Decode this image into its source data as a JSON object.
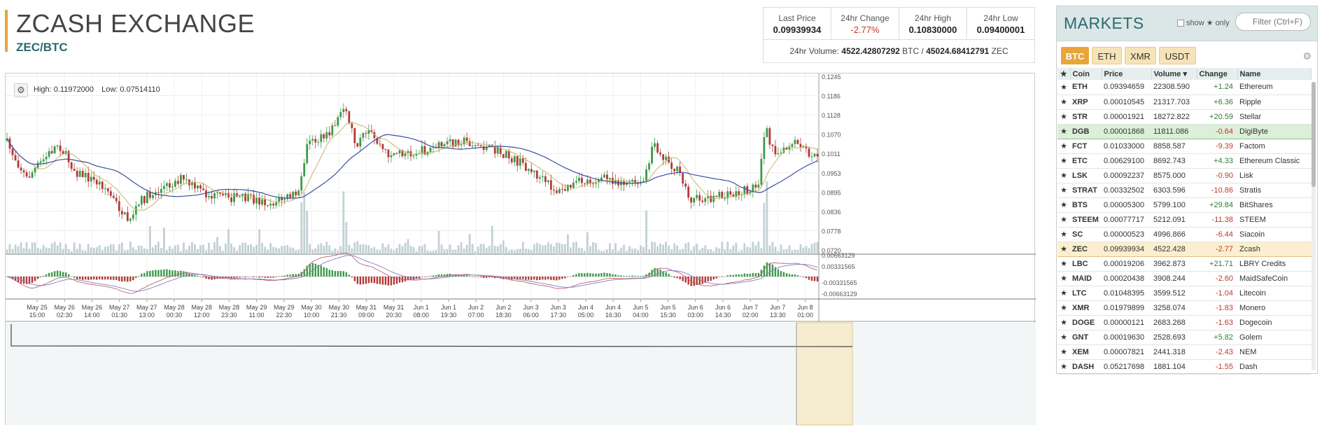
{
  "header": {
    "title": "ZCASH EXCHANGE",
    "pair": "ZEC/BTC"
  },
  "stats": {
    "last_price_label": "Last Price",
    "last_price": "0.09939934",
    "change_label": "24hr Change",
    "change": "-2.77%",
    "high_label": "24hr High",
    "high": "0.10830000",
    "low_label": "24hr Low",
    "low": "0.09400001",
    "volume_label": "24hr Volume:",
    "volume_btc": "4522.42807292",
    "volume_btc_unit": "BTC",
    "volume_sep": "/",
    "volume_zec": "45024.68412791",
    "volume_zec_unit": "ZEC"
  },
  "chart": {
    "high_label": "High: 0.11972000",
    "low_label": "Low: 0.07514110",
    "price_ticks": [
      "0.1245",
      "0.1186",
      "0.1128",
      "0.1070",
      "0.1011",
      "0.0953",
      "0.0895",
      "0.0836",
      "0.0778",
      "0.0720"
    ],
    "macd_ticks": [
      "0.00663129",
      "0.00331565",
      "-0.00331565",
      "-0.00663129"
    ],
    "time_labels": [
      [
        "May 25",
        "15:00"
      ],
      [
        "May 26",
        "02:30"
      ],
      [
        "May 26",
        "14:00"
      ],
      [
        "May 27",
        "01:30"
      ],
      [
        "May 27",
        "13:00"
      ],
      [
        "May 28",
        "00:30"
      ],
      [
        "May 28",
        "12:00"
      ],
      [
        "May 28",
        "23:30"
      ],
      [
        "May 29",
        "11:00"
      ],
      [
        "May 29",
        "22:30"
      ],
      [
        "May 30",
        "10:00"
      ],
      [
        "May 30",
        "21:30"
      ],
      [
        "May 31",
        "09:00"
      ],
      [
        "May 31",
        "20:30"
      ],
      [
        "Jun 1",
        "08:00"
      ],
      [
        "Jun 1",
        "19:30"
      ],
      [
        "Jun 2",
        "07:00"
      ],
      [
        "Jun 2",
        "18:30"
      ],
      [
        "Jun 3",
        "06:00"
      ],
      [
        "Jun 3",
        "17:30"
      ],
      [
        "Jun 4",
        "05:00"
      ],
      [
        "Jun 4",
        "16:30"
      ],
      [
        "Jun 5",
        "04:00"
      ],
      [
        "Jun 5",
        "15:30"
      ],
      [
        "Jun 6",
        "03:00"
      ],
      [
        "Jun 6",
        "14:30"
      ],
      [
        "Jun 7",
        "02:00"
      ],
      [
        "Jun 7",
        "13:30"
      ],
      [
        "Jun 8",
        "01:00"
      ]
    ],
    "colors": {
      "up": "#3c9a48",
      "down": "#b23a34",
      "ma_fast": "#c9b36b",
      "ma_slow": "#3c4fa0",
      "volume": "#b7c9cc",
      "macd_line": "#c06070",
      "signal_line": "#8080c0"
    }
  },
  "markets": {
    "title": "MARKETS",
    "show_label": "show",
    "star_glyph": "★",
    "only_label": "only",
    "filter_placeholder": "Filter (Ctrl+F)",
    "tabs": [
      "BTC",
      "ETH",
      "XMR",
      "USDT"
    ],
    "columns": [
      "Coin",
      "Price",
      "Volume ▾",
      "Change",
      "Name"
    ],
    "rows": [
      {
        "coin": "ETH",
        "price": "0.09394659",
        "volume": "22308.590",
        "change": "+1.24",
        "name": "Ethereum"
      },
      {
        "coin": "XRP",
        "price": "0.00010545",
        "volume": "21317.703",
        "change": "+6.36",
        "name": "Ripple"
      },
      {
        "coin": "STR",
        "price": "0.00001921",
        "volume": "18272.822",
        "change": "+20.59",
        "name": "Stellar"
      },
      {
        "coin": "DGB",
        "price": "0.00001868",
        "volume": "11811.086",
        "change": "-0.64",
        "name": "DigiByte"
      },
      {
        "coin": "FCT",
        "price": "0.01033000",
        "volume": "8858.587",
        "change": "-9.39",
        "name": "Factom"
      },
      {
        "coin": "ETC",
        "price": "0.00629100",
        "volume": "8692.743",
        "change": "+4.33",
        "name": "Ethereum Classic"
      },
      {
        "coin": "LSK",
        "price": "0.00092237",
        "volume": "8575.000",
        "change": "-0.90",
        "name": "Lisk"
      },
      {
        "coin": "STRAT",
        "price": "0.00332502",
        "volume": "6303.596",
        "change": "-10.86",
        "name": "Stratis"
      },
      {
        "coin": "BTS",
        "price": "0.00005300",
        "volume": "5799.100",
        "change": "+29.84",
        "name": "BitShares"
      },
      {
        "coin": "STEEM",
        "price": "0.00077717",
        "volume": "5212.091",
        "change": "-11.38",
        "name": "STEEM"
      },
      {
        "coin": "SC",
        "price": "0.00000523",
        "volume": "4996.866",
        "change": "-6.44",
        "name": "Siacoin"
      },
      {
        "coin": "ZEC",
        "price": "0.09939934",
        "volume": "4522.428",
        "change": "-2.77",
        "name": "Zcash"
      },
      {
        "coin": "LBC",
        "price": "0.00019206",
        "volume": "3962.873",
        "change": "+21.71",
        "name": "LBRY Credits"
      },
      {
        "coin": "MAID",
        "price": "0.00020438",
        "volume": "3908.244",
        "change": "-2.60",
        "name": "MaidSafeCoin"
      },
      {
        "coin": "LTC",
        "price": "0.01048395",
        "volume": "3599.512",
        "change": "-1.04",
        "name": "Litecoin"
      },
      {
        "coin": "XMR",
        "price": "0.01979899",
        "volume": "3258.074",
        "change": "-1.83",
        "name": "Monero"
      },
      {
        "coin": "DOGE",
        "price": "0.00000121",
        "volume": "2683.268",
        "change": "-1.63",
        "name": "Dogecoin"
      },
      {
        "coin": "GNT",
        "price": "0.00019630",
        "volume": "2528.693",
        "change": "+5.82",
        "name": "Golem"
      },
      {
        "coin": "XEM",
        "price": "0.00007821",
        "volume": "2441.318",
        "change": "-2.43",
        "name": "NEM"
      },
      {
        "coin": "DASH",
        "price": "0.05217698",
        "volume": "1881.104",
        "change": "-1.55",
        "name": "Dash"
      }
    ]
  }
}
